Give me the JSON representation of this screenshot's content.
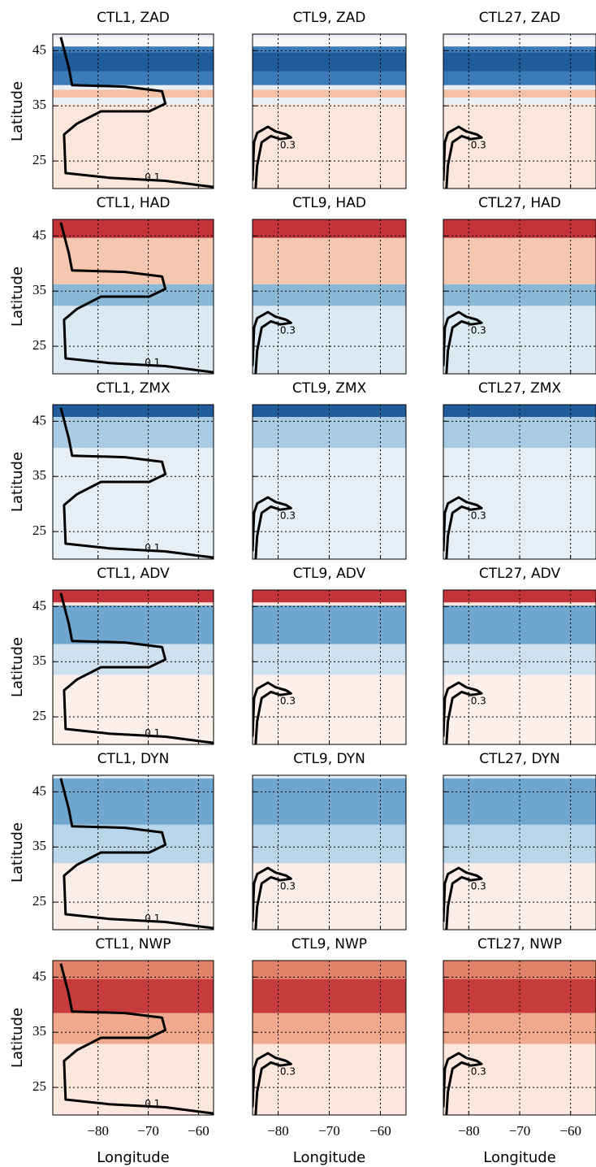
{
  "chart_data": [
    {
      "type": "heatmap",
      "title": "CTL1, ZAD",
      "ylabel": "Latitude",
      "xlim": [
        -89,
        -57
      ],
      "ylim": [
        20,
        48
      ],
      "xticks": [
        -80,
        -70,
        -60
      ],
      "yticks": [
        25,
        35,
        45
      ],
      "grid": true,
      "annotations": [
        "0.1"
      ]
    },
    {
      "type": "heatmap",
      "title": "CTL9, ZAD",
      "xlim": [
        -85,
        -55
      ],
      "ylim": [
        20,
        48
      ],
      "xticks": [
        -80,
        -70,
        -60
      ],
      "yticks": [
        25,
        35,
        45
      ],
      "grid": true,
      "annotations": [
        "0.3"
      ]
    },
    {
      "type": "heatmap",
      "title": "CTL27, ZAD",
      "xlim": [
        -85,
        -55
      ],
      "ylim": [
        20,
        48
      ],
      "xticks": [
        -80,
        -70,
        -60
      ],
      "yticks": [
        25,
        35,
        45
      ],
      "grid": true,
      "annotations": [
        "0.3"
      ]
    },
    {
      "type": "heatmap",
      "title": "CTL1, HAD",
      "ylabel": "Latitude",
      "xlim": [
        -89,
        -57
      ],
      "ylim": [
        20,
        48
      ],
      "xticks": [
        -80,
        -70,
        -60
      ],
      "yticks": [
        25,
        35,
        45
      ],
      "grid": true,
      "annotations": [
        "0.1"
      ]
    },
    {
      "type": "heatmap",
      "title": "CTL9, HAD",
      "xlim": [
        -85,
        -55
      ],
      "ylim": [
        20,
        48
      ],
      "xticks": [
        -80,
        -70,
        -60
      ],
      "yticks": [
        25,
        35,
        45
      ],
      "grid": true,
      "annotations": [
        "0.3"
      ]
    },
    {
      "type": "heatmap",
      "title": "CTL27, HAD",
      "xlim": [
        -85,
        -55
      ],
      "ylim": [
        20,
        48
      ],
      "xticks": [
        -80,
        -70,
        -60
      ],
      "yticks": [
        25,
        35,
        45
      ],
      "grid": true,
      "annotations": [
        "0.3"
      ]
    },
    {
      "type": "heatmap",
      "title": "CTL1, ZMX",
      "ylabel": "Latitude",
      "xlim": [
        -89,
        -57
      ],
      "ylim": [
        20,
        48
      ],
      "xticks": [
        -80,
        -70,
        -60
      ],
      "yticks": [
        25,
        35,
        45
      ],
      "grid": true,
      "annotations": [
        "0.1"
      ]
    },
    {
      "type": "heatmap",
      "title": "CTL9, ZMX",
      "xlim": [
        -85,
        -55
      ],
      "ylim": [
        20,
        48
      ],
      "xticks": [
        -80,
        -70,
        -60
      ],
      "yticks": [
        25,
        35,
        45
      ],
      "grid": true,
      "annotations": [
        "0.3"
      ]
    },
    {
      "type": "heatmap",
      "title": "CTL27, ZMX",
      "xlim": [
        -85,
        -55
      ],
      "ylim": [
        20,
        48
      ],
      "xticks": [
        -80,
        -70,
        -60
      ],
      "yticks": [
        25,
        35,
        45
      ],
      "grid": true,
      "annotations": [
        "0.3"
      ]
    },
    {
      "type": "heatmap",
      "title": "CTL1, ADV",
      "ylabel": "Latitude",
      "xlim": [
        -89,
        -57
      ],
      "ylim": [
        20,
        48
      ],
      "xticks": [
        -80,
        -70,
        -60
      ],
      "yticks": [
        25,
        35,
        45
      ],
      "grid": true,
      "annotations": [
        "0.1"
      ]
    },
    {
      "type": "heatmap",
      "title": "CTL9, ADV",
      "xlim": [
        -85,
        -55
      ],
      "ylim": [
        20,
        48
      ],
      "xticks": [
        -80,
        -70,
        -60
      ],
      "yticks": [
        25,
        35,
        45
      ],
      "grid": true,
      "annotations": [
        "0.3"
      ]
    },
    {
      "type": "heatmap",
      "title": "CTL27, ADV",
      "xlim": [
        -85,
        -55
      ],
      "ylim": [
        20,
        48
      ],
      "xticks": [
        -80,
        -70,
        -60
      ],
      "yticks": [
        25,
        35,
        45
      ],
      "grid": true,
      "annotations": [
        "0.3"
      ]
    },
    {
      "type": "heatmap",
      "title": "CTL1, DYN",
      "ylabel": "Latitude",
      "xlim": [
        -89,
        -57
      ],
      "ylim": [
        20,
        48
      ],
      "xticks": [
        -80,
        -70,
        -60
      ],
      "yticks": [
        25,
        35,
        45
      ],
      "grid": true,
      "annotations": [
        "0.1"
      ]
    },
    {
      "type": "heatmap",
      "title": "CTL9, DYN",
      "xlim": [
        -85,
        -55
      ],
      "ylim": [
        20,
        48
      ],
      "xticks": [
        -80,
        -70,
        -60
      ],
      "yticks": [
        25,
        35,
        45
      ],
      "grid": true,
      "annotations": [
        "0.3"
      ]
    },
    {
      "type": "heatmap",
      "title": "CTL27, DYN",
      "xlim": [
        -85,
        -55
      ],
      "ylim": [
        20,
        48
      ],
      "xticks": [
        -80,
        -70,
        -60
      ],
      "yticks": [
        25,
        35,
        45
      ],
      "grid": true,
      "annotations": [
        "0.3"
      ]
    },
    {
      "type": "heatmap",
      "title": "CTL1, NWP",
      "ylabel": "Latitude",
      "xlabel": "Longitude",
      "xlim": [
        -89,
        -57
      ],
      "ylim": [
        20,
        48
      ],
      "xticks": [
        {
          "value": -80,
          "label": "−80"
        },
        {
          "value": -70,
          "label": "−70"
        },
        {
          "value": -60,
          "label": "−60"
        }
      ],
      "yticks": [
        25,
        35,
        45
      ],
      "grid": true,
      "annotations": [
        "0.1"
      ]
    },
    {
      "type": "heatmap",
      "title": "CTL9, NWP",
      "xlabel": "Longitude",
      "xlim": [
        -85,
        -55
      ],
      "ylim": [
        20,
        48
      ],
      "xticks": [
        {
          "value": -80,
          "label": "−80"
        },
        {
          "value": -70,
          "label": "−70"
        },
        {
          "value": -60,
          "label": "−60"
        }
      ],
      "yticks": [
        25,
        35,
        45
      ],
      "grid": true,
      "annotations": [
        "0.3"
      ]
    },
    {
      "type": "heatmap",
      "title": "CTL27, NWP",
      "xlabel": "Longitude",
      "xlim": [
        -85,
        -55
      ],
      "ylim": [
        20,
        48
      ],
      "xticks": [
        {
          "value": -80,
          "label": "−80"
        },
        {
          "value": -70,
          "label": "−70"
        },
        {
          "value": -60,
          "label": "−60"
        }
      ],
      "yticks": [
        25,
        35,
        45
      ],
      "grid": true,
      "annotations": [
        "0.3"
      ]
    }
  ]
}
